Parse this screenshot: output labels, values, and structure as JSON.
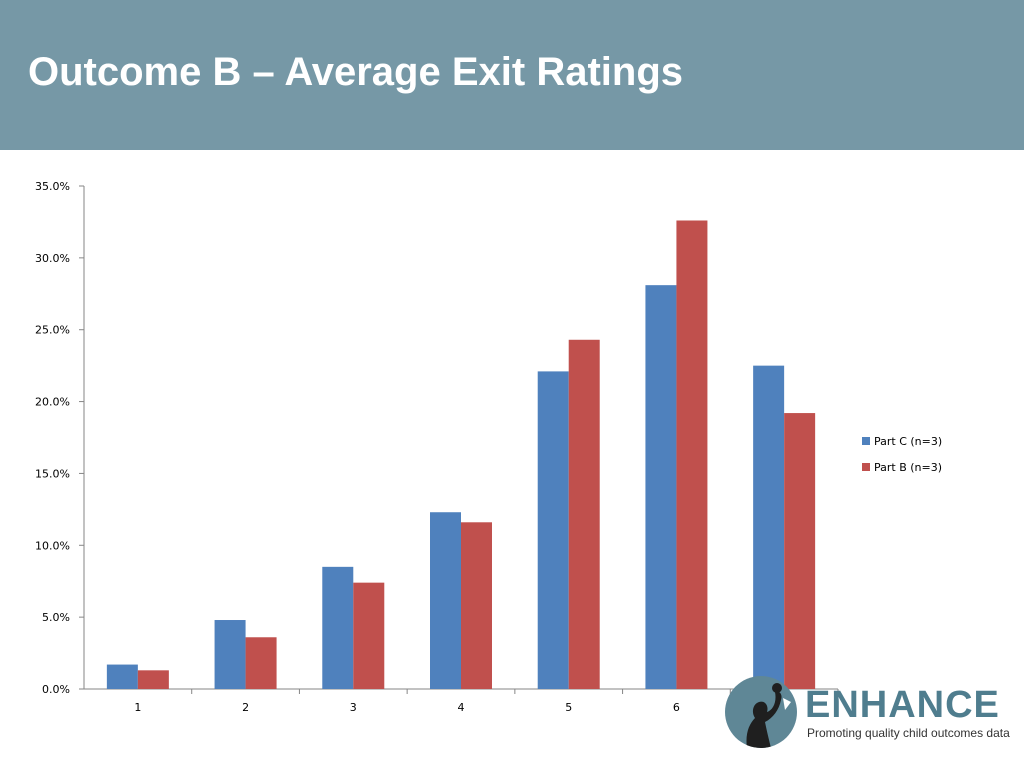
{
  "slide": {
    "title": "Outcome B – Average Exit Ratings"
  },
  "logo": {
    "name": "ENHANCE",
    "tagline": "Promoting quality child outcomes data"
  },
  "colors": {
    "header": "#7698a6",
    "part_c": "#4f81bd",
    "part_b": "#c0504d"
  },
  "chart_data": {
    "type": "bar",
    "title": "",
    "xlabel": "",
    "ylabel": "",
    "categories": [
      "1",
      "2",
      "3",
      "4",
      "5",
      "6",
      "7"
    ],
    "series": [
      {
        "name": "Part C (n=3)",
        "values": [
          1.7,
          4.8,
          8.5,
          12.3,
          22.1,
          28.1,
          22.5
        ]
      },
      {
        "name": "Part B (n=3)",
        "values": [
          1.3,
          3.6,
          7.4,
          11.6,
          24.3,
          32.6,
          19.2
        ]
      }
    ],
    "ylim": [
      0,
      35
    ],
    "yticks": [
      "0.0%",
      "5.0%",
      "10.0%",
      "15.0%",
      "20.0%",
      "25.0%",
      "30.0%",
      "35.0%"
    ],
    "grid": false,
    "legend": "right"
  }
}
